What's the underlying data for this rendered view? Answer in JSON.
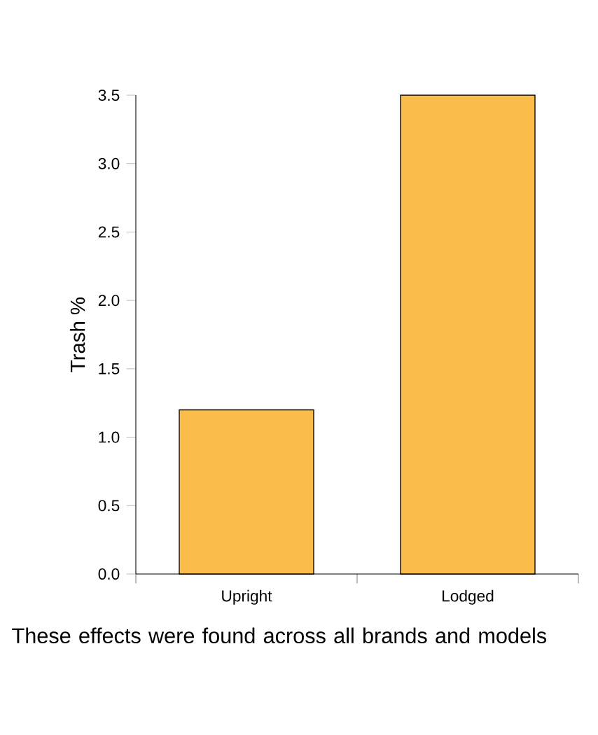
{
  "chart_data": {
    "type": "bar",
    "ylabel": "Trash %",
    "categories": [
      "Upright",
      "Lodged"
    ],
    "values": [
      1.2,
      3.5
    ],
    "color": "#fbbd4a",
    "ylim": [
      0,
      3.5
    ],
    "yticks": [
      {
        "value": 0,
        "label": "0.0"
      },
      {
        "value": 0.5,
        "label": "0.5"
      },
      {
        "value": 1,
        "label": "1.0"
      },
      {
        "value": 1.5,
        "label": "1.5"
      },
      {
        "value": 2,
        "label": "2.0"
      },
      {
        "value": 2.5,
        "label": "2.5"
      },
      {
        "value": 3,
        "label": "3.0"
      },
      {
        "value": 3.5,
        "label": "3.5"
      }
    ],
    "annotations": [
      "These effects were found across all brands and models"
    ]
  }
}
